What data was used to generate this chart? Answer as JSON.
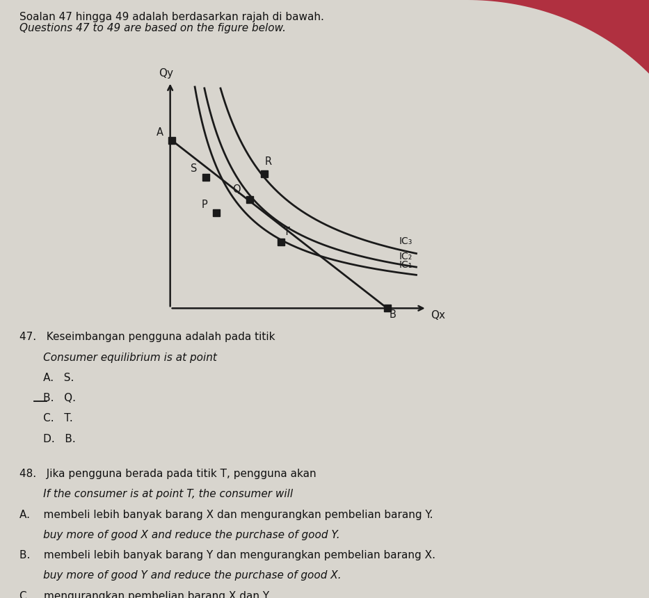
{
  "title_line1": "Soalan 47 hingga 49 adalah berdasarkan rajah di bawah.",
  "title_line2": "Questions 47 to 49 are based on the figure below.",
  "xlabel": "Qx",
  "ylabel": "Qy",
  "paper_color": "#d8d5ce",
  "red_bg_color": "#b03040",
  "line_color": "#1a1a1a",
  "point_color": "#1a1a1a",
  "ic_labels": [
    "IC₁",
    "IC₂",
    "IC₃"
  ],
  "points": {
    "A": [
      0.05,
      7.2
    ],
    "B": [
      8.2,
      0.0
    ],
    "S": [
      1.35,
      5.6
    ],
    "P": [
      1.75,
      4.1
    ],
    "Q": [
      3.0,
      4.65
    ],
    "R": [
      3.55,
      5.75
    ],
    "T": [
      4.2,
      2.85
    ]
  },
  "k1": 13.5,
  "k2": 16.8,
  "k3": 22.5,
  "text_color": "#111111",
  "font_size": 11,
  "font_size_small": 9.5
}
